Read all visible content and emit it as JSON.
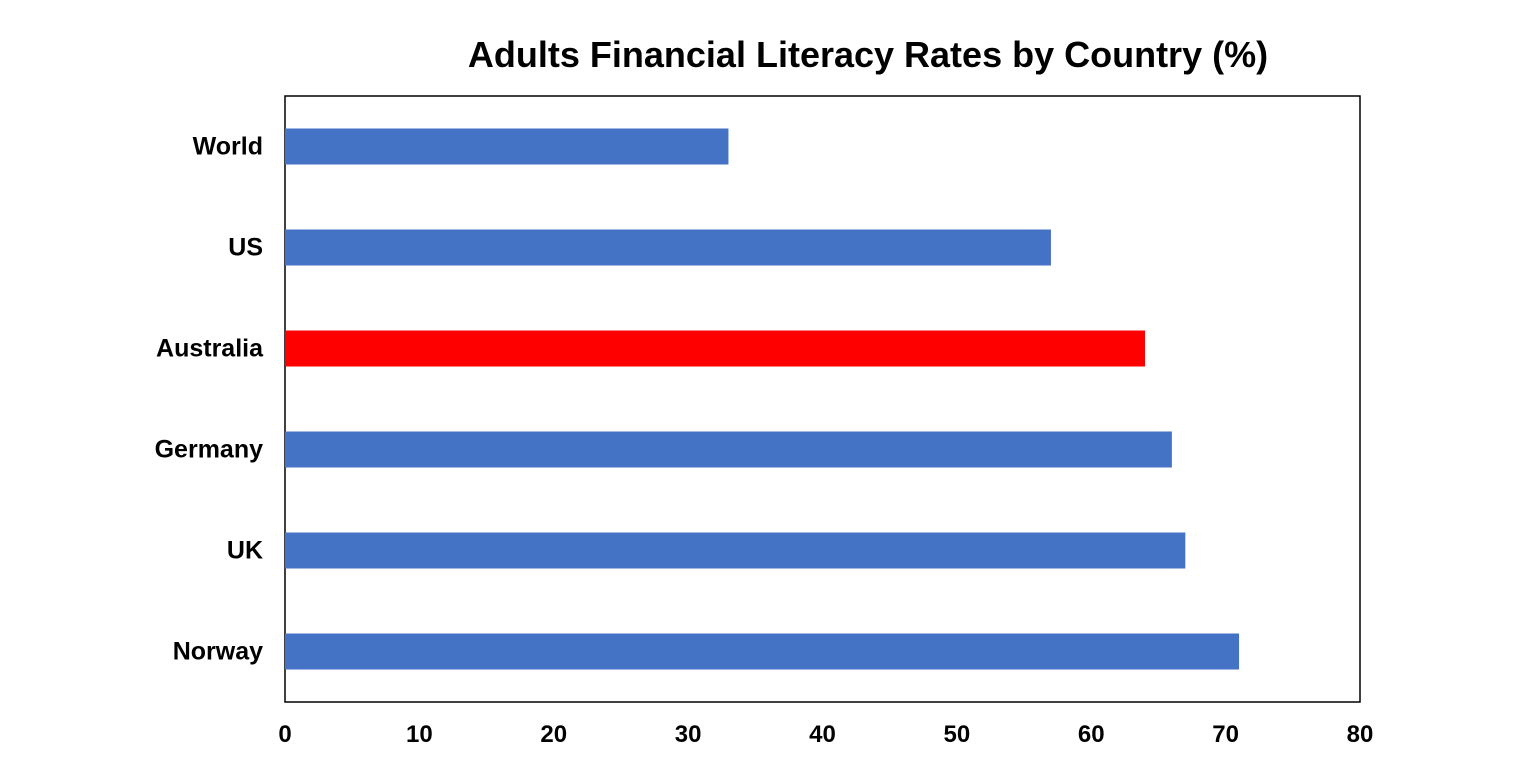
{
  "chart_data": {
    "type": "bar",
    "orientation": "horizontal",
    "title": "Adults Financial Literacy Rates by Country (%)",
    "xlabel": "",
    "ylabel": "",
    "categories": [
      "World",
      "US",
      "Australia",
      "Germany",
      "UK",
      "Norway"
    ],
    "values": [
      33,
      57,
      64,
      66,
      67,
      71
    ],
    "xlim": [
      0,
      80
    ],
    "xticks": [
      0,
      10,
      20,
      30,
      40,
      50,
      60,
      70,
      80
    ],
    "xtick_labels": [
      "0",
      "10",
      "20",
      "30",
      "40",
      "50",
      "60",
      "70",
      "80"
    ],
    "grid": false,
    "legend": "none",
    "colors": {
      "default": "#4472C4",
      "highlight": "#FF0000",
      "highlight_category": "Australia"
    }
  }
}
